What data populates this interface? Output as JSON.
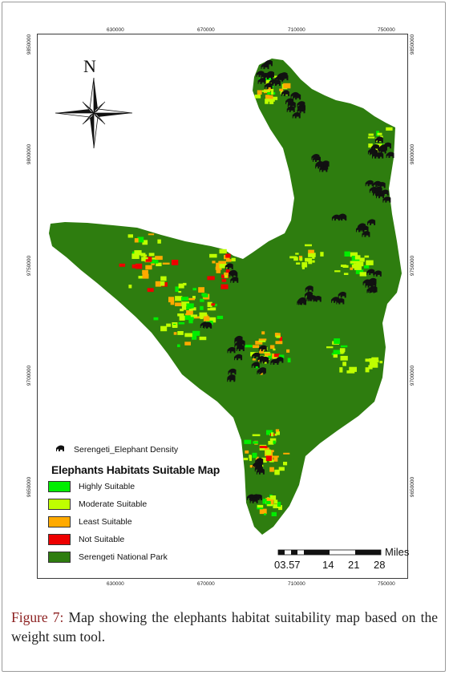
{
  "map": {
    "coord_labels": {
      "top": [
        "630000",
        "670000",
        "710000",
        "750000"
      ],
      "bottom": [
        "630000",
        "670000",
        "710000",
        "750000"
      ],
      "left": [
        "9850000",
        "9800000",
        "9750000",
        "9700000",
        "9650000"
      ],
      "right": [
        "9850000",
        "9800000",
        "9750000",
        "9700000",
        "9650000"
      ]
    },
    "north_arrow_letter": "N",
    "density_legend_label": "Serengeti_Elephant Density",
    "legend_title": "Elephants Habitats Suitable Map",
    "legend_items": [
      {
        "label": "Highly Suitable",
        "color": "#00ee00"
      },
      {
        "label": "Moderate Suitable",
        "color": "#bfff00"
      },
      {
        "label": "Least Suitable",
        "color": "#ffaa00"
      },
      {
        "label": "Not Suitable",
        "color": "#ee0000"
      },
      {
        "label": "Serengeti National Park",
        "color": "#2e7d0f"
      }
    ],
    "colors": {
      "park": "#2e7d0f",
      "highly": "#00ee00",
      "moderate": "#bfff00",
      "least": "#ffaa00",
      "not": "#ee0000",
      "elephant": "#111111"
    },
    "icons": [
      "elephant-icon",
      "north-arrow-icon"
    ],
    "scale_bar": {
      "units": "Miles",
      "labels": [
        "03.57",
        "14",
        "21",
        "28"
      ]
    }
  },
  "caption": {
    "label": "Figure 7:",
    "text": " Map showing the elephants habitat suitability map based on the weight sum tool."
  }
}
